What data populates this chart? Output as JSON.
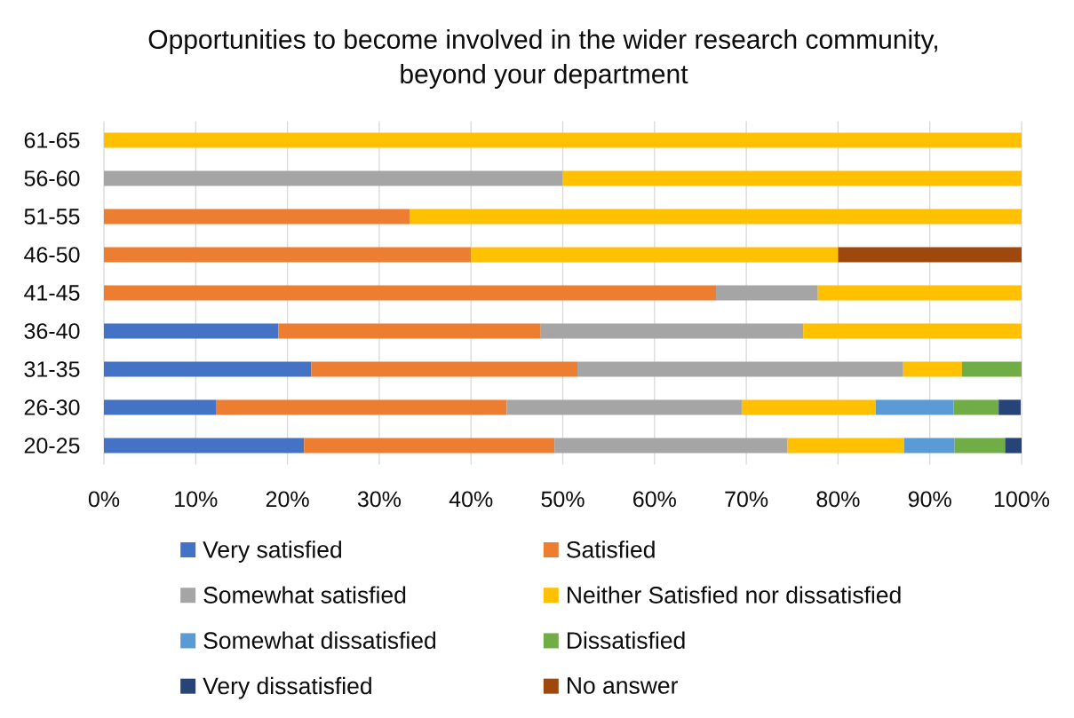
{
  "chart_data": {
    "type": "bar",
    "orientation": "horizontal",
    "stacked": true,
    "title": "Opportunities to become involved in the wider research community, beyond your department",
    "categories": [
      "61-65",
      "56-60",
      "51-55",
      "46-50",
      "41-45",
      "36-40",
      "31-35",
      "26-30",
      "20-25"
    ],
    "series": [
      {
        "name": "Very satisfied",
        "color": "#4472c4",
        "values": [
          null,
          null,
          null,
          null,
          null,
          19.0,
          22.6,
          12.2,
          21.8
        ]
      },
      {
        "name": "Satisfied",
        "color": "#ed7d31",
        "values": [
          null,
          null,
          33.3,
          40.0,
          66.7,
          28.6,
          29.0,
          31.7,
          27.3
        ]
      },
      {
        "name": "Somewhat satisfied",
        "color": "#a5a5a5",
        "values": [
          null,
          50.0,
          null,
          null,
          11.1,
          28.6,
          35.5,
          25.6,
          25.4
        ]
      },
      {
        "name": "Neither Satisfied nor dissatisfied",
        "color": "#ffc000",
        "values": [
          100.0,
          50.0,
          66.7,
          40.0,
          22.2,
          23.8,
          6.4,
          14.6,
          12.7
        ]
      },
      {
        "name": "Somewhat dissatisfied",
        "color": "#5b9bd5",
        "values": [
          null,
          null,
          null,
          null,
          null,
          null,
          null,
          8.5,
          5.5
        ]
      },
      {
        "name": "Dissatisfied",
        "color": "#70ad47",
        "values": [
          null,
          null,
          null,
          null,
          null,
          null,
          6.5,
          4.9,
          5.5
        ]
      },
      {
        "name": "Very dissatisfied",
        "color": "#264478",
        "values": [
          null,
          null,
          null,
          null,
          null,
          null,
          null,
          2.4,
          1.8
        ]
      },
      {
        "name": "No answer",
        "color": "#9e480e",
        "values": [
          null,
          null,
          null,
          20.0,
          null,
          null,
          null,
          null,
          null
        ]
      }
    ],
    "xlim": [
      0,
      100
    ],
    "xticks": [
      {
        "value": 0,
        "label": "0%"
      },
      {
        "value": 10,
        "label": "10%"
      },
      {
        "value": 20,
        "label": "20%"
      },
      {
        "value": 30,
        "label": "30%"
      },
      {
        "value": 40,
        "label": "40%"
      },
      {
        "value": 50,
        "label": "50%"
      },
      {
        "value": 60,
        "label": "60%"
      },
      {
        "value": 70,
        "label": "70%"
      },
      {
        "value": 80,
        "label": "80%"
      },
      {
        "value": 90,
        "label": "90%"
      },
      {
        "value": 100,
        "label": "100%"
      }
    ],
    "grid": "x",
    "legend": "bottom"
  }
}
